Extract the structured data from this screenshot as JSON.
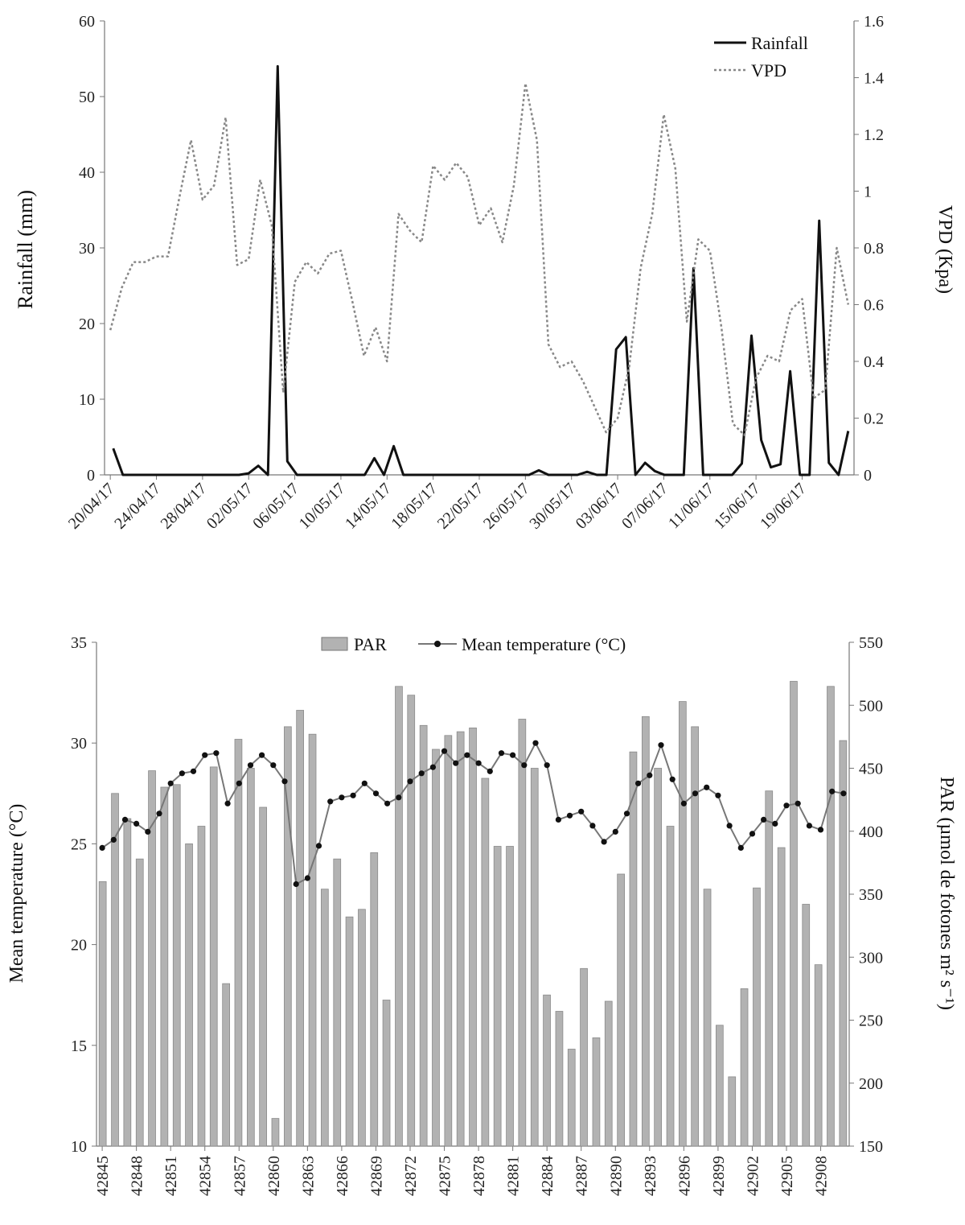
{
  "chart_data": [
    {
      "type": "line",
      "ylabel": "Rainfall (mm)",
      "y2label": "VPD (Kpa)",
      "ylim": [
        0,
        60
      ],
      "y2lim": [
        0,
        1.6
      ],
      "yticks": [
        "0",
        "10",
        "20",
        "30",
        "40",
        "50",
        "60"
      ],
      "y2ticks": [
        "0",
        "0.2",
        "0.4",
        "0.6",
        "0.8",
        "1",
        "1.2",
        "1.4",
        "1.6"
      ],
      "x_tick_labels": [
        "20/04/17",
        "24/04/17",
        "28/04/17",
        "02/05/17",
        "06/05/17",
        "10/05/17",
        "14/05/17",
        "18/05/17",
        "22/05/17",
        "26/05/17",
        "30/05/17",
        "03/06/17",
        "07/06/17",
        "11/06/17",
        "15/06/17",
        "19/06/17"
      ],
      "legend_position": "top-right",
      "series": [
        {
          "name": "Rainfall",
          "axis": "left",
          "style": "solid",
          "color": "#111111",
          "values": [
            3.5,
            0,
            0,
            0,
            0,
            0,
            0,
            0,
            0,
            0,
            0,
            0,
            0,
            0,
            0.2,
            1.2,
            0,
            54,
            1.8,
            0,
            0,
            0,
            0,
            0,
            0,
            0,
            0,
            2.2,
            0,
            3.8,
            0,
            0,
            0,
            0,
            0,
            0,
            0,
            0,
            0,
            0,
            0,
            0,
            0,
            0,
            0.6,
            0,
            0,
            0,
            0,
            0.4,
            0,
            0,
            16.6,
            18.2,
            0,
            1.6,
            0.5,
            0,
            0,
            0,
            27.3,
            0,
            0,
            0,
            0,
            1.5,
            18.4,
            4.6,
            1.0,
            1.4,
            13.7,
            0,
            0,
            33.6,
            1.6,
            0,
            5.8
          ]
        },
        {
          "name": "VPD",
          "axis": "right",
          "style": "dotted",
          "color": "#888888",
          "values": [
            0.51,
            0.66,
            0.75,
            0.75,
            0.77,
            0.77,
            0.98,
            1.18,
            0.97,
            1.02,
            1.26,
            0.74,
            0.76,
            1.04,
            0.88,
            0.29,
            0.68,
            0.75,
            0.71,
            0.78,
            0.79,
            0.61,
            0.42,
            0.52,
            0.4,
            0.92,
            0.86,
            0.82,
            1.09,
            1.04,
            1.1,
            1.05,
            0.88,
            0.94,
            0.82,
            1.02,
            1.38,
            1.18,
            0.46,
            0.38,
            0.4,
            0.33,
            0.24,
            0.15,
            0.2,
            0.38,
            0.73,
            0.92,
            1.27,
            1.08,
            0.54,
            0.83,
            0.79,
            0.52,
            0.18,
            0.14,
            0.34,
            0.42,
            0.4,
            0.58,
            0.62,
            0.27,
            0.3,
            0.8,
            0.6
          ]
        }
      ]
    },
    {
      "type": "bar",
      "ylabel": "Mean temperature (°C)",
      "y2label": "PAR (µmol de fotones m² s⁻¹)",
      "ylim": [
        10,
        35
      ],
      "y2lim": [
        150,
        550
      ],
      "yticks": [
        "10",
        "15",
        "20",
        "25",
        "30",
        "35"
      ],
      "y2ticks": [
        "150",
        "200",
        "250",
        "300",
        "350",
        "400",
        "450",
        "500",
        "550"
      ],
      "x_tick_labels": [
        "42845",
        "42848",
        "42851",
        "42854",
        "42857",
        "42860",
        "42863",
        "42866",
        "42869",
        "42872",
        "42875",
        "42878",
        "42881",
        "42884",
        "42887",
        "42890",
        "42893",
        "42896",
        "42899",
        "42902",
        "42905",
        "42908"
      ],
      "legend_position": "top",
      "series": [
        {
          "name": "PAR",
          "axis": "right",
          "kind": "bar",
          "color": "#b2b2b2",
          "values": [
            360,
            430,
            410,
            378,
            448,
            435,
            437,
            390,
            404,
            451,
            279,
            473,
            450,
            419,
            172,
            483,
            496,
            477,
            354,
            378,
            332,
            338,
            383,
            266,
            515,
            508,
            484,
            465,
            476,
            479,
            482,
            442,
            388,
            388,
            489,
            450,
            270,
            257,
            227,
            291,
            236,
            265,
            366,
            463,
            491,
            450,
            404,
            503,
            483,
            354,
            246,
            205,
            275,
            355,
            432,
            387,
            519,
            342,
            294,
            515,
            472
          ]
        },
        {
          "name": "Mean temperature (°C)",
          "axis": "left",
          "kind": "line-marker",
          "color": "#777777",
          "values": [
            24.8,
            25.2,
            26.2,
            26.0,
            25.6,
            26.5,
            28.0,
            28.5,
            28.6,
            29.4,
            29.5,
            27.0,
            28.0,
            28.9,
            29.4,
            28.9,
            28.1,
            23.0,
            23.3,
            24.9,
            27.1,
            27.3,
            27.4,
            28.0,
            27.5,
            27.0,
            27.3,
            28.1,
            28.5,
            28.8,
            29.6,
            29.0,
            29.4,
            29.0,
            28.6,
            29.5,
            29.4,
            28.9,
            30.0,
            28.9,
            26.2,
            26.4,
            26.6,
            25.9,
            25.1,
            25.6,
            26.5,
            28.0,
            28.4,
            29.9,
            28.2,
            27.0,
            27.5,
            27.8,
            27.4,
            25.9,
            24.8,
            25.5,
            26.2,
            26.0,
            26.9,
            27.0,
            25.9,
            25.7,
            27.6,
            27.5
          ]
        }
      ]
    }
  ]
}
